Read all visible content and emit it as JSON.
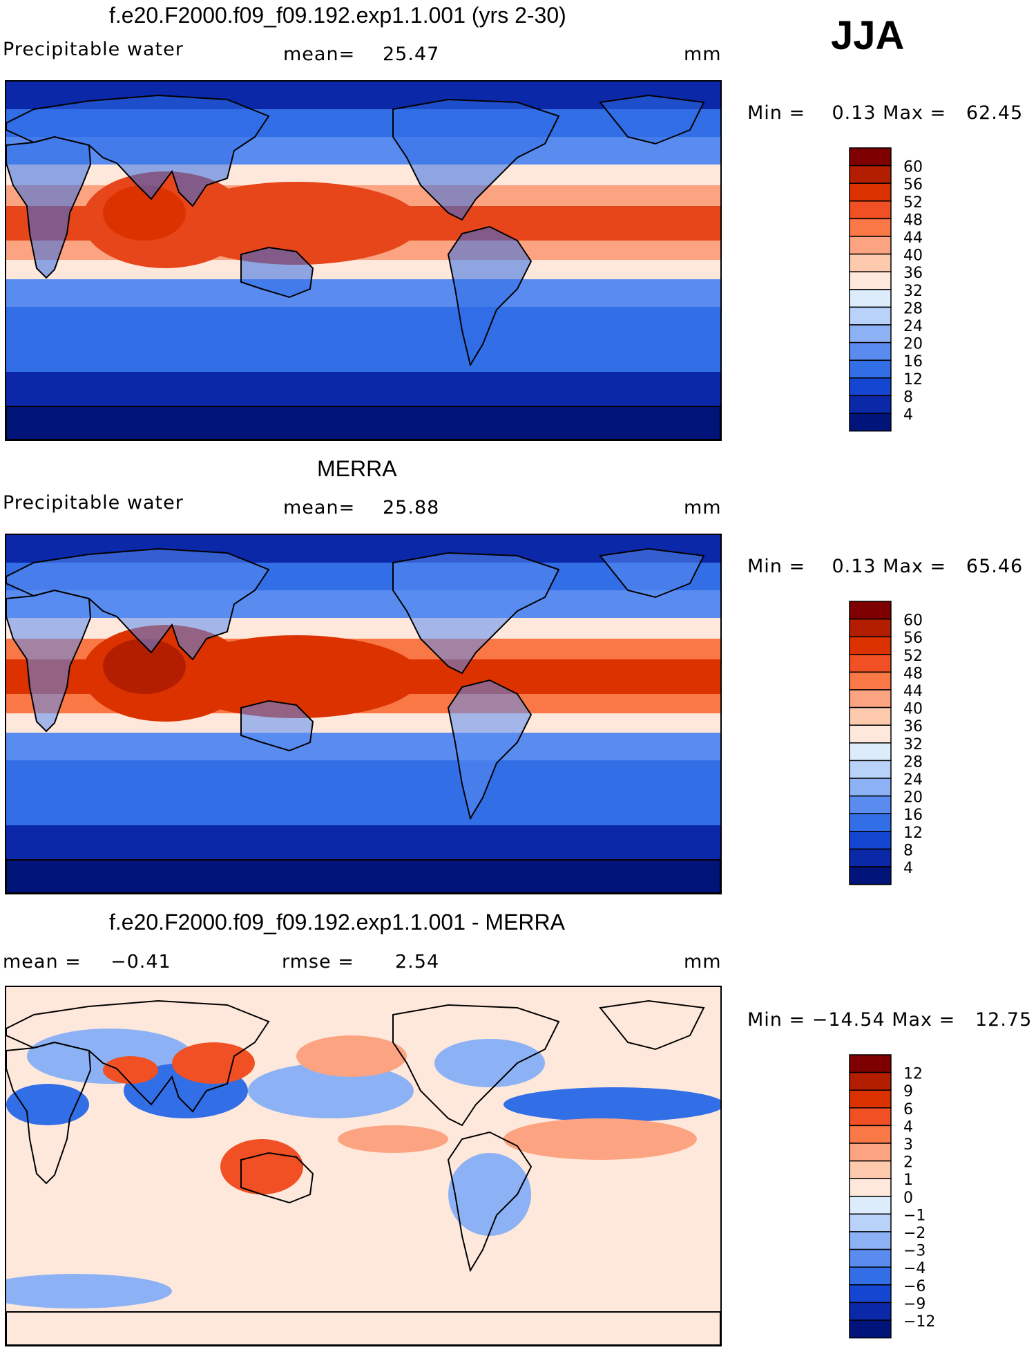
{
  "season": "JJA",
  "panels": [
    {
      "id": "model",
      "title": "f.e20.F2000.f09_f09.192.exp1.1.001 (yrs 2-30)",
      "variable": "Precipitable water",
      "stat1_label": "mean=",
      "stat1_value": "25.47",
      "units": "mm",
      "minmax": "Min =    0.13 Max =   62.45",
      "colorbar": {
        "labels": [
          "60",
          "56",
          "52",
          "48",
          "44",
          "40",
          "36",
          "32",
          "28",
          "24",
          "20",
          "16",
          "12",
          "8",
          "4"
        ],
        "colors": [
          "#7f0000",
          "#b41e00",
          "#dc3200",
          "#f05023",
          "#fa7846",
          "#fca482",
          "#fdcaae",
          "#fee8dc",
          "#dcecfb",
          "#b8d2fa",
          "#8cb2f5",
          "#5a8cf0",
          "#326ee6",
          "#1446d2",
          "#0a28a8",
          "#00147a"
        ]
      },
      "field_colors": {
        "eq": "#e64619",
        "mid": "#fca482",
        "mid2": "#fee8dc",
        "ocean": "#5a8cf0",
        "cool": "#326ee6",
        "polar": "#0a28a8",
        "ant": "#00147a",
        "land": "#326ee6"
      }
    },
    {
      "id": "obs",
      "title": "MERRA",
      "variable": "Precipitable water",
      "stat1_label": "mean=",
      "stat1_value": "25.88",
      "units": "mm",
      "minmax": "Min =    0.13 Max =   65.46",
      "colorbar": {
        "labels": [
          "60",
          "56",
          "52",
          "48",
          "44",
          "40",
          "36",
          "32",
          "28",
          "24",
          "20",
          "16",
          "12",
          "8",
          "4"
        ],
        "colors": [
          "#7f0000",
          "#b41e00",
          "#dc3200",
          "#f05023",
          "#fa7846",
          "#fca482",
          "#fdcaae",
          "#fee8dc",
          "#dcecfb",
          "#b8d2fa",
          "#8cb2f5",
          "#5a8cf0",
          "#326ee6",
          "#1446d2",
          "#0a28a8",
          "#00147a"
        ]
      },
      "field_colors": {
        "eq": "#dc3200",
        "mid": "#fa7846",
        "mid2": "#fee8dc",
        "ocean": "#5a8cf0",
        "cool": "#326ee6",
        "polar": "#0a28a8",
        "ant": "#00147a",
        "land": "#5a8cf0"
      }
    },
    {
      "id": "diff",
      "title": "f.e20.F2000.f09_f09.192.exp1.1.001 - MERRA",
      "stat1_label": "mean =",
      "stat1_value": "−0.41",
      "stat2_label": "rmse =",
      "stat2_value": "2.54",
      "units": "mm",
      "minmax": "Min = −14.54 Max =   12.75",
      "colorbar": {
        "labels": [
          "12",
          "9",
          "6",
          "4",
          "3",
          "2",
          "1",
          "0",
          "−1",
          "−2",
          "−3",
          "−4",
          "−6",
          "−9",
          "−12"
        ],
        "colors": [
          "#7f0000",
          "#b41e00",
          "#dc3200",
          "#f05023",
          "#fa7846",
          "#fca482",
          "#fdcaae",
          "#fee8dc",
          "#dcecfb",
          "#b8d2fa",
          "#8cb2f5",
          "#5a8cf0",
          "#326ee6",
          "#1446d2",
          "#0a28a8",
          "#00147a"
        ]
      },
      "field_colors": {
        "bg": "#fee8dc",
        "pos": "#fca482",
        "pos2": "#f05023",
        "neg": "#8cb2f5",
        "neg2": "#326ee6",
        "neg3": "#1446d2"
      }
    }
  ]
}
